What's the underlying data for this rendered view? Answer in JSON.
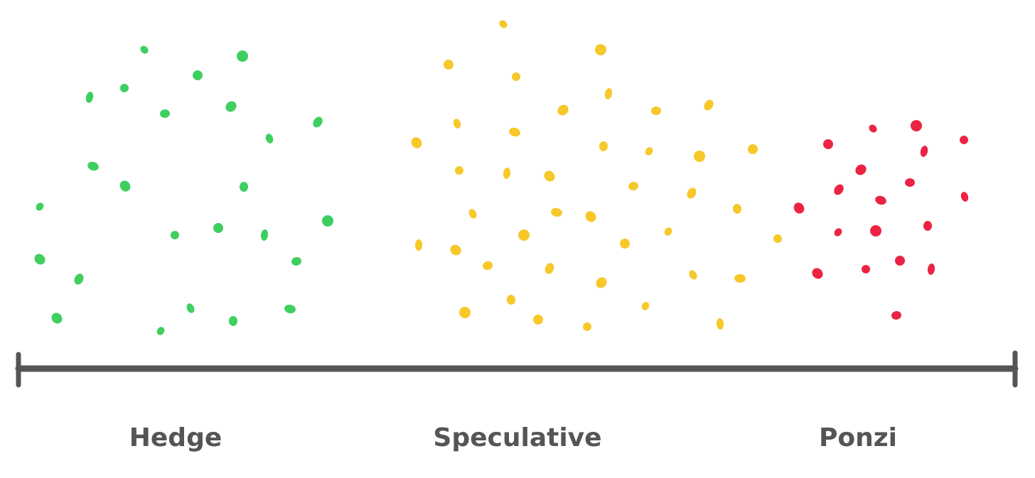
{
  "labels": [
    "Hedge",
    "Speculative",
    "Ponzi"
  ]
}
